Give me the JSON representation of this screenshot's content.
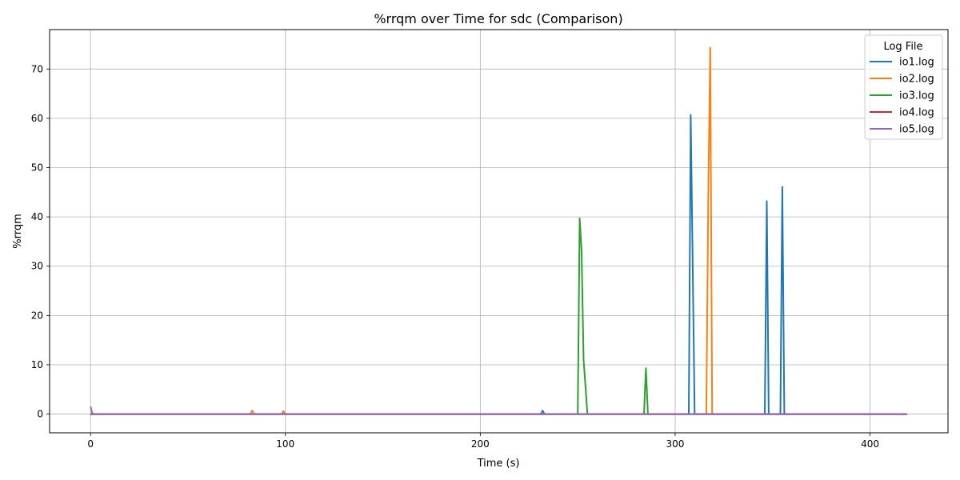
{
  "chart_data": {
    "type": "line",
    "title": "%rrqm over Time for sdc (Comparison)",
    "xlabel": "Time (s)",
    "ylabel": "%rrqm",
    "xlim": [
      -21,
      440
    ],
    "ylim": [
      -3.8,
      78
    ],
    "xticks": [
      0,
      100,
      200,
      300,
      400
    ],
    "yticks": [
      0,
      10,
      20,
      30,
      40,
      50,
      60,
      70
    ],
    "grid": true,
    "legend_title": "Log File",
    "legend_position": "top-right",
    "series": [
      {
        "name": "io1.log",
        "color": "#1f77b4",
        "points": [
          [
            0,
            0
          ],
          [
            231,
            0
          ],
          [
            232,
            0.7
          ],
          [
            233,
            0
          ],
          [
            307,
            0
          ],
          [
            308,
            60.7
          ],
          [
            309,
            30.0
          ],
          [
            310,
            0
          ],
          [
            346,
            0
          ],
          [
            347,
            43.2
          ],
          [
            348,
            0
          ],
          [
            354,
            0
          ],
          [
            355,
            46.1
          ],
          [
            356,
            0
          ],
          [
            419,
            0
          ]
        ]
      },
      {
        "name": "io2.log",
        "color": "#ff7f0e",
        "points": [
          [
            0,
            0
          ],
          [
            82,
            0
          ],
          [
            83,
            0.7
          ],
          [
            84,
            0
          ],
          [
            98,
            0
          ],
          [
            99,
            0.6
          ],
          [
            100,
            0
          ],
          [
            316,
            0
          ],
          [
            317,
            45.0
          ],
          [
            318,
            74.3
          ],
          [
            319,
            0
          ],
          [
            419,
            0
          ]
        ]
      },
      {
        "name": "io3.log",
        "color": "#2ca02c",
        "points": [
          [
            0,
            0
          ],
          [
            250,
            0
          ],
          [
            251,
            39.7
          ],
          [
            252,
            33.0
          ],
          [
            253,
            11.0
          ],
          [
            255,
            0
          ],
          [
            284,
            0
          ],
          [
            285,
            9.3
          ],
          [
            286,
            0
          ],
          [
            419,
            0
          ]
        ]
      },
      {
        "name": "io4.log",
        "color": "#d62728",
        "points": [
          [
            0,
            0
          ],
          [
            419,
            0
          ]
        ]
      },
      {
        "name": "io5.log",
        "color": "#9467bd",
        "points": [
          [
            0,
            1.5
          ],
          [
            1,
            0
          ],
          [
            419,
            0
          ]
        ]
      }
    ]
  }
}
